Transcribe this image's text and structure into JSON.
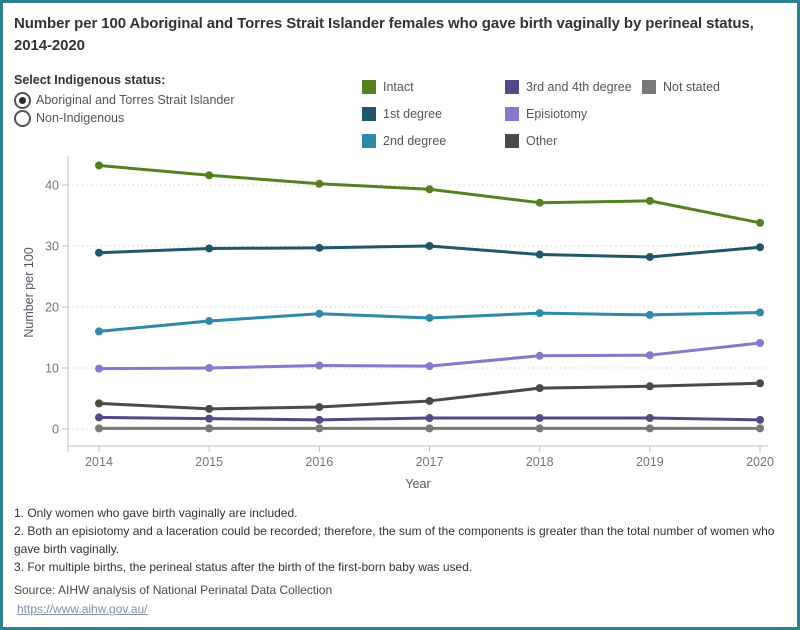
{
  "frame": {
    "border_color": "#2d7f95",
    "background": "#ffffff"
  },
  "title": "Number per 100 Aboriginal and Torres Strait Islander females who gave birth vaginally by perineal status, 2014-2020",
  "filter": {
    "label": "Select Indigenous status:",
    "options": [
      {
        "label": "Aboriginal and Torres Strait Islander",
        "selected": true
      },
      {
        "label": "Non-Indigenous",
        "selected": false
      }
    ]
  },
  "legend": {
    "items": [
      {
        "label": "Intact",
        "color": "#55801f"
      },
      {
        "label": "1st degree",
        "color": "#1f566a"
      },
      {
        "label": "2nd degree",
        "color": "#2e8aa8"
      },
      {
        "label": "3rd and 4th degree",
        "color": "#554a87"
      },
      {
        "label": "Episiotomy",
        "color": "#8679c9"
      },
      {
        "label": "Other",
        "color": "#4a4a4a"
      },
      {
        "label": "Not stated",
        "color": "#787878"
      }
    ]
  },
  "chart_data": {
    "type": "line",
    "x": [
      2014,
      2015,
      2016,
      2017,
      2018,
      2019,
      2020
    ],
    "series": [
      {
        "name": "Not stated",
        "color": "#787878",
        "values": [
          0.1,
          0.1,
          0.1,
          0.1,
          0.1,
          0.1,
          0.1
        ]
      },
      {
        "name": "3rd and 4th degree",
        "color": "#554a87",
        "values": [
          1.9,
          1.7,
          1.5,
          1.8,
          1.8,
          1.8,
          1.5
        ]
      },
      {
        "name": "Other",
        "color": "#4a4a4a",
        "values": [
          4.2,
          3.3,
          3.6,
          4.6,
          6.7,
          7.0,
          7.5
        ]
      },
      {
        "name": "Episiotomy",
        "color": "#8679c9",
        "values": [
          9.9,
          10.0,
          10.4,
          10.3,
          12.0,
          12.1,
          14.1
        ]
      },
      {
        "name": "2nd degree",
        "color": "#2e8aa8",
        "values": [
          16.0,
          17.7,
          18.9,
          18.2,
          19.0,
          18.7,
          19.1
        ]
      },
      {
        "name": "1st degree",
        "color": "#1f566a",
        "values": [
          28.9,
          29.6,
          29.7,
          30.0,
          28.6,
          28.2,
          29.8
        ]
      },
      {
        "name": "Intact",
        "color": "#55801f",
        "values": [
          43.2,
          41.6,
          40.2,
          39.3,
          37.1,
          37.4,
          33.8
        ]
      }
    ],
    "xlabel": "Year",
    "ylabel": "Number per 100",
    "ylim": [
      0,
      45
    ],
    "yticks": [
      0,
      10,
      20,
      30,
      40
    ],
    "grid": "dotted-horizontal",
    "legend_position": "top"
  },
  "footnotes": [
    "1. Only women who gave birth vaginally are included.",
    "2. Both an episiotomy and a laceration could be recorded; therefore, the sum of the components is greater than the total number of women who gave birth vaginally.",
    "3. For multiple births, the perineal status after the birth of the first-born baby was used."
  ],
  "source": {
    "label": "Source:  AIHW analysis of National Perinatal Data Collection",
    "link": "https://www.aihw.gov.au/"
  }
}
